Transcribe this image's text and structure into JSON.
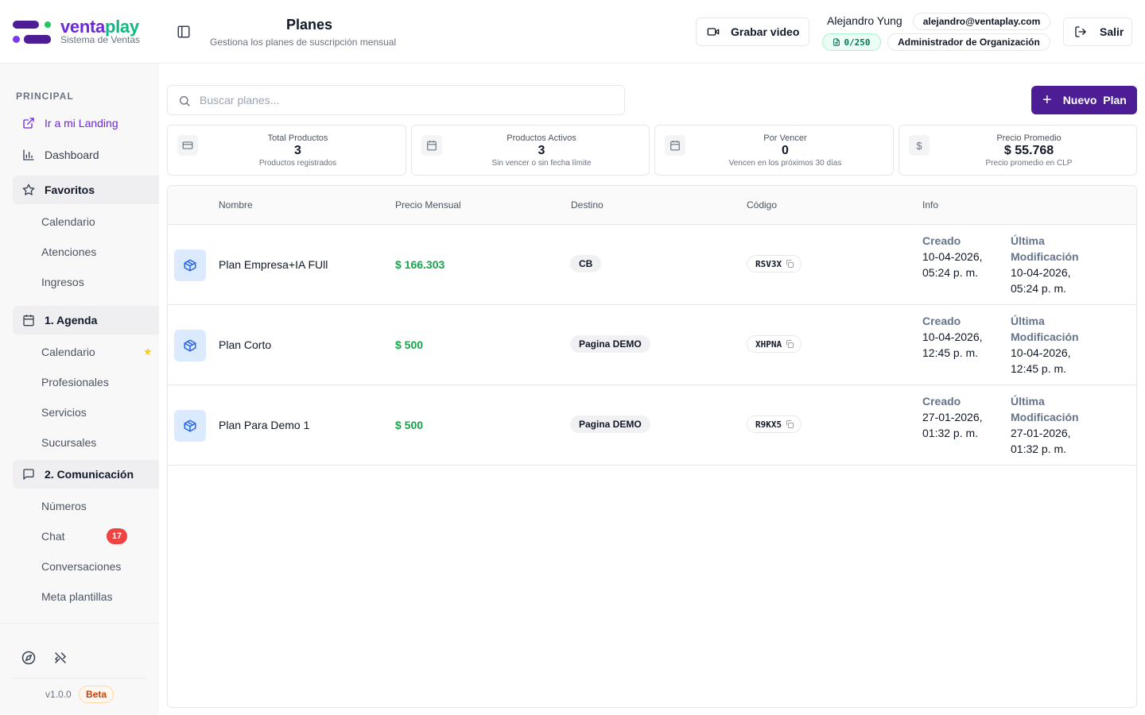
{
  "brand": {
    "name_part1": "venta",
    "name_part2": "play",
    "subtitle": "Sistema de Ventas"
  },
  "sidebar": {
    "section": "PRINCIPAL",
    "items": [
      {
        "label": "Ir a mi Landing",
        "icon": "external-link-icon"
      },
      {
        "label": "Dashboard",
        "icon": "bar-chart-icon"
      },
      {
        "label": "Favoritos",
        "icon": "star-icon"
      },
      {
        "label": "Calendario"
      },
      {
        "label": "Atenciones"
      },
      {
        "label": "Ingresos"
      },
      {
        "label": "1. Agenda",
        "icon": "calendar-icon"
      },
      {
        "label": "Calendario",
        "starred": true
      },
      {
        "label": "Profesionales"
      },
      {
        "label": "Servicios"
      },
      {
        "label": "Sucursales"
      },
      {
        "label": "2. Comunicación",
        "icon": "message-icon"
      },
      {
        "label": "Números"
      },
      {
        "label": "Chat",
        "badge": "17"
      },
      {
        "label": "Conversaciones"
      },
      {
        "label": "Meta plantillas"
      }
    ],
    "footer": {
      "version": "v1.0.0",
      "beta": "Beta"
    }
  },
  "header": {
    "title": "Planes",
    "subtitle": "Gestiona los planes de suscripción mensual",
    "record_label": "Grabar video",
    "user_name": "Alejandro Yung",
    "email": "alejandro@ventaplay.com",
    "quota": "0/250",
    "role": "Administrador de Organización",
    "exit_label": "Salir"
  },
  "search": {
    "placeholder": "Buscar planes..."
  },
  "new_button": "Nuevo  Plan",
  "stats": [
    {
      "label": "Total Productos",
      "value": "3",
      "note": "Productos registrados",
      "icon": "card-icon"
    },
    {
      "label": "Productos Activos",
      "value": "3",
      "note": "Sin vencer o sin fecha límite",
      "icon": "calendar-icon"
    },
    {
      "label": "Por Vencer",
      "value": "0",
      "note": "Vencen en los próximos 30 días",
      "icon": "calendar-icon"
    },
    {
      "label": "Precio Promedio",
      "value": "$ 55.768",
      "note": "Precio promedio en CLP",
      "icon": "dollar-icon"
    }
  ],
  "table": {
    "columns": [
      "Nombre",
      "Precio Mensual",
      "Destino",
      "Código",
      "Info"
    ],
    "info_labels": {
      "created": "Creado",
      "modified_1": "Última",
      "modified_2": "Modificación"
    },
    "rows": [
      {
        "name": "Plan Empresa+IA FUll",
        "price": "$ 166.303",
        "destination": "CB",
        "code": "RSV3X",
        "created_date": "10-04-2026,",
        "created_time": "05:24 p. m.",
        "modified_date": "10-04-2026,",
        "modified_time": "05:24 p. m."
      },
      {
        "name": "Plan Corto",
        "price": "$ 500",
        "destination": "Pagina DEMO",
        "code": "XHPNA",
        "created_date": "10-04-2026,",
        "created_time": "12:45 p. m.",
        "modified_date": "10-04-2026,",
        "modified_time": "12:45 p. m."
      },
      {
        "name": "Plan Para Demo 1",
        "price": "$ 500",
        "destination": "Pagina DEMO",
        "code": "R9KX5",
        "created_date": "27-01-2026,",
        "created_time": "01:32 p. m.",
        "modified_date": "27-01-2026,",
        "modified_time": "01:32 p. m."
      }
    ]
  }
}
